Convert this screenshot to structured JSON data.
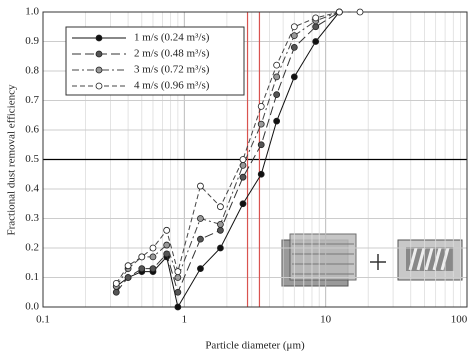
{
  "chart_data": {
    "type": "line",
    "x_label": "Particle diameter (μm)",
    "y_label": "Fractional dust removal efficiency",
    "log_x": true,
    "grid": true,
    "minor_grid": true,
    "legend": "upper left",
    "xlim": [
      0.1,
      100
    ],
    "xticks": [
      0.1,
      1,
      10,
      100
    ],
    "ylim": [
      0,
      1
    ],
    "yticks": [
      {
        "value": 0,
        "label": "0.0"
      },
      0.1,
      0.2,
      0.3,
      0.4,
      0.5,
      0.6,
      0.7,
      0.8,
      0.9,
      {
        "value": 1,
        "label": "1.0"
      }
    ],
    "x": [
      0.33,
      0.4,
      0.5,
      0.6,
      0.75,
      0.9,
      1.3,
      1.8,
      2.6,
      3.5,
      4.5,
      6,
      8.5,
      12.5,
      17.5
    ],
    "series": [
      {
        "name": "1 m/s (0.24 m³/s)",
        "color": "#111111",
        "marker_fill": "#111111",
        "line_style": "solid",
        "values": [
          0.07,
          0.1,
          0.12,
          0.12,
          0.17,
          0.0,
          0.13,
          0.2,
          0.35,
          0.45,
          0.63,
          0.78,
          0.9,
          1.0,
          null
        ]
      },
      {
        "name": "2 m/s (0.48 m³/s)",
        "color": "#333333",
        "marker_fill": "#555555",
        "line_style": "long-dash",
        "values": [
          0.05,
          0.1,
          0.13,
          0.13,
          0.18,
          0.05,
          0.23,
          0.26,
          0.44,
          0.55,
          0.72,
          0.88,
          0.95,
          1.0,
          null
        ]
      },
      {
        "name": "3 m/s (0.72 m³/s)",
        "color": "#444444",
        "marker_fill": "#999999",
        "line_style": "dash-dot",
        "values": [
          0.07,
          0.13,
          0.17,
          0.17,
          0.21,
          0.1,
          0.3,
          0.28,
          0.48,
          0.62,
          0.78,
          0.92,
          0.97,
          1.0,
          null
        ]
      },
      {
        "name": "4 m/s (0.96 m³/s)",
        "color": "#444444",
        "marker_fill": "#ffffff",
        "line_style": "dash",
        "values": [
          0.08,
          0.14,
          0.17,
          0.2,
          0.26,
          0.12,
          0.41,
          0.34,
          0.5,
          0.68,
          0.82,
          0.95,
          0.98,
          1.0,
          1.0
        ]
      }
    ],
    "reference_lines": {
      "horizontal": {
        "value": 0.5,
        "color": "#000000"
      },
      "vertical": {
        "values": [
          2.8,
          3.4
        ],
        "color": "#d9534f"
      }
    }
  }
}
